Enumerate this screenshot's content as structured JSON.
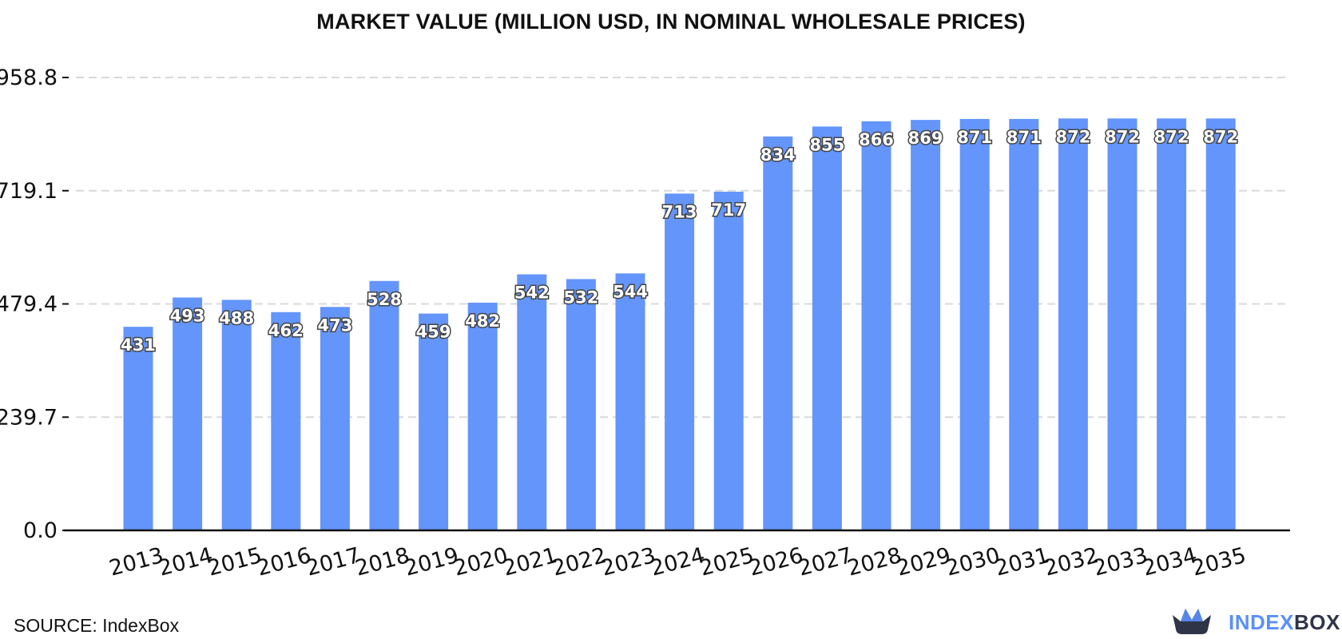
{
  "chart_data": {
    "type": "bar",
    "title": "MARKET VALUE (MILLION USD, IN NOMINAL WHOLESALE PRICES)",
    "xlabel": "",
    "ylabel": "",
    "categories": [
      "2013",
      "2014",
      "2015",
      "2016",
      "2017",
      "2018",
      "2019",
      "2020",
      "2021",
      "2022",
      "2023",
      "2024",
      "2025",
      "2026",
      "2027",
      "2028",
      "2029",
      "2030",
      "2031",
      "2032",
      "2033",
      "2034",
      "2035"
    ],
    "values": [
      431,
      493,
      488,
      462,
      473,
      528,
      459,
      482,
      542,
      532,
      544,
      713,
      717,
      834,
      855,
      866,
      869,
      871,
      871,
      872,
      872,
      872,
      872
    ],
    "data_labels": [
      "431",
      "493",
      "488",
      "462",
      "473",
      "528",
      "459",
      "482",
      "542",
      "532",
      "544",
      "713",
      "717",
      "834",
      "855",
      "866",
      "869",
      "871",
      "871",
      "872",
      "872",
      "872",
      "872"
    ],
    "yticks": [
      0.0,
      239.7,
      479.4,
      719.1,
      958.8
    ],
    "ytick_labels": [
      "0.0",
      "239.7",
      "479.4",
      "719.1",
      "958.8"
    ],
    "ylim": [
      0,
      958.8
    ],
    "grid": true,
    "bar_color": "#6495fa"
  },
  "footer": {
    "source": "SOURCE: IndexBox"
  },
  "brand": {
    "name_part1": "INDEX",
    "name_part2": "BOX",
    "logo_icon": "crown-basket-icon",
    "color_accent": "#5b8ff9",
    "color_dark": "#2f3447"
  }
}
